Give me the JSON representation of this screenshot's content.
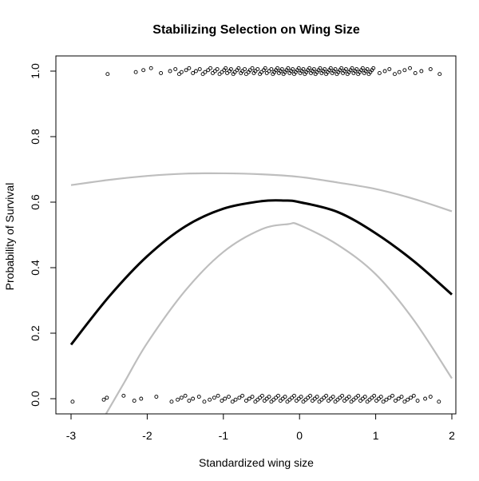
{
  "chart_data": {
    "type": "scatter",
    "title": "Stabilizing Selection on Wing Size",
    "xlabel": "Standardized wing size",
    "ylabel": "Probability of Survival",
    "xlim": [
      -3,
      2
    ],
    "ylim": [
      0,
      1
    ],
    "x_ticks": [
      "-3",
      "-2",
      "-1",
      "0",
      "1",
      "2"
    ],
    "y_ticks": [
      "0.0",
      "0.2",
      "0.4",
      "0.6",
      "0.8",
      "1.0"
    ],
    "grid": false,
    "legend": "none",
    "colors": {
      "fit": "#000000",
      "confidence_band": "#bebebe",
      "points": "#000000"
    },
    "series": [
      {
        "kind": "line",
        "role": "fitted",
        "x": [
          -3.0,
          -2.5,
          -2.0,
          -1.5,
          -1.0,
          -0.5,
          -0.2,
          0.0,
          0.5,
          1.0,
          1.5,
          2.0
        ],
        "values": [
          0.165,
          0.312,
          0.435,
          0.526,
          0.58,
          0.603,
          0.605,
          0.6,
          0.57,
          0.505,
          0.42,
          0.318
        ]
      },
      {
        "kind": "line",
        "role": "upper",
        "x": [
          -3.0,
          -2.5,
          -2.0,
          -1.5,
          -1.0,
          -0.5,
          0.0,
          0.5,
          1.0,
          1.5,
          2.0
        ],
        "values": [
          0.652,
          0.668,
          0.68,
          0.687,
          0.688,
          0.685,
          0.677,
          0.66,
          0.64,
          0.61,
          0.572
        ]
      },
      {
        "kind": "line",
        "role": "lower",
        "x": [
          -2.55,
          -2.3,
          -2.0,
          -1.5,
          -1.0,
          -0.5,
          -0.15,
          0.0,
          0.5,
          1.0,
          1.5,
          2.0
        ],
        "values": [
          -0.05,
          0.05,
          0.17,
          0.33,
          0.448,
          0.517,
          0.533,
          0.53,
          0.47,
          0.38,
          0.24,
          0.062
        ]
      },
      {
        "kind": "points",
        "role": "survived",
        "y": 1,
        "x": [
          -2.52,
          -2.15,
          -2.05,
          -1.95,
          -1.82,
          -1.7,
          -1.63,
          -1.58,
          -1.55,
          -1.49,
          -1.45,
          -1.4,
          -1.36,
          -1.31,
          -1.27,
          -1.24,
          -1.2,
          -1.17,
          -1.14,
          -1.11,
          -1.08,
          -1.05,
          -1.02,
          -0.99,
          -0.97,
          -0.95,
          -0.92,
          -0.9,
          -0.87,
          -0.85,
          -0.82,
          -0.8,
          -0.77,
          -0.75,
          -0.72,
          -0.7,
          -0.67,
          -0.65,
          -0.62,
          -0.6,
          -0.58,
          -0.55,
          -0.52,
          -0.5,
          -0.47,
          -0.45,
          -0.43,
          -0.4,
          -0.37,
          -0.35,
          -0.33,
          -0.31,
          -0.29,
          -0.27,
          -0.25,
          -0.23,
          -0.21,
          -0.19,
          -0.17,
          -0.15,
          -0.13,
          -0.11,
          -0.09,
          -0.07,
          -0.05,
          -0.03,
          -0.01,
          0.01,
          0.03,
          0.05,
          0.07,
          0.09,
          0.11,
          0.13,
          0.15,
          0.17,
          0.19,
          0.21,
          0.23,
          0.25,
          0.27,
          0.29,
          0.31,
          0.33,
          0.35,
          0.37,
          0.39,
          0.41,
          0.43,
          0.45,
          0.47,
          0.49,
          0.51,
          0.53,
          0.55,
          0.57,
          0.59,
          0.61,
          0.63,
          0.65,
          0.67,
          0.69,
          0.71,
          0.73,
          0.75,
          0.77,
          0.79,
          0.81,
          0.83,
          0.85,
          0.87,
          0.89,
          0.91,
          0.93,
          0.95,
          0.97,
          1.05,
          1.12,
          1.18,
          1.25,
          1.31,
          1.38,
          1.45,
          1.52,
          1.6,
          1.72,
          1.84
        ]
      },
      {
        "kind": "points",
        "role": "died",
        "y": 0,
        "x": [
          -2.98,
          -2.57,
          -2.53,
          -2.31,
          -2.17,
          -2.08,
          -1.88,
          -1.68,
          -1.6,
          -1.55,
          -1.5,
          -1.45,
          -1.4,
          -1.32,
          -1.25,
          -1.18,
          -1.12,
          -1.07,
          -1.02,
          -0.98,
          -0.93,
          -0.88,
          -0.84,
          -0.79,
          -0.75,
          -0.7,
          -0.66,
          -0.62,
          -0.58,
          -0.55,
          -0.52,
          -0.49,
          -0.46,
          -0.43,
          -0.4,
          -0.37,
          -0.34,
          -0.31,
          -0.28,
          -0.25,
          -0.22,
          -0.19,
          -0.16,
          -0.13,
          -0.1,
          -0.07,
          -0.04,
          -0.01,
          0.02,
          0.05,
          0.08,
          0.11,
          0.14,
          0.17,
          0.2,
          0.23,
          0.26,
          0.29,
          0.32,
          0.35,
          0.38,
          0.41,
          0.44,
          0.47,
          0.5,
          0.53,
          0.56,
          0.59,
          0.62,
          0.65,
          0.68,
          0.71,
          0.74,
          0.77,
          0.8,
          0.83,
          0.86,
          0.89,
          0.92,
          0.95,
          0.98,
          1.01,
          1.04,
          1.07,
          1.1,
          1.14,
          1.18,
          1.22,
          1.26,
          1.3,
          1.34,
          1.38,
          1.42,
          1.46,
          1.5,
          1.55,
          1.65,
          1.72,
          1.83
        ]
      }
    ]
  }
}
